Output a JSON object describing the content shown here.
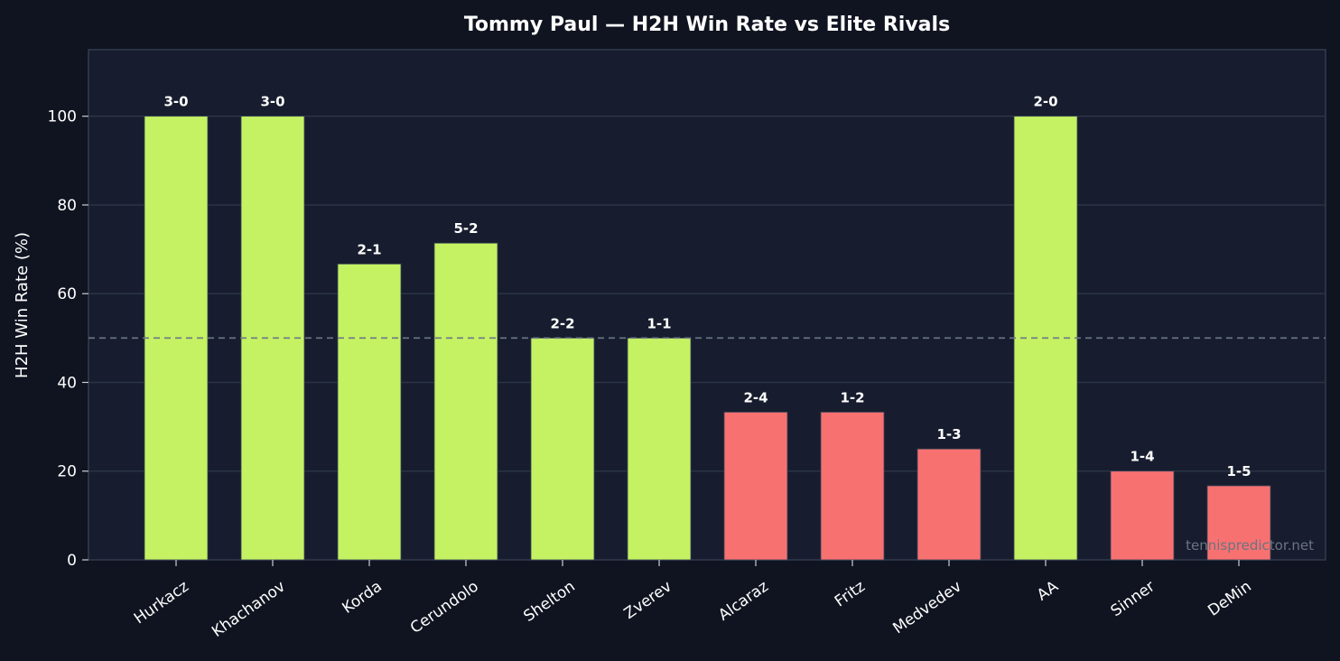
{
  "chart_data": {
    "type": "bar",
    "title": "Tommy Paul — H2H Win Rate vs Elite Rivals",
    "xlabel": "",
    "ylabel": "H2H Win Rate (%)",
    "ylim": [
      0,
      115
    ],
    "yticks": [
      0,
      20,
      40,
      60,
      80,
      100
    ],
    "reference_line": 50,
    "grid": true,
    "categories": [
      "Hurkacz",
      "Khachanov",
      "Korda",
      "Cerundolo",
      "Shelton",
      "Zverev",
      "Alcaraz",
      "Fritz",
      "Medvedev",
      "AA",
      "Sinner",
      "DeMin"
    ],
    "values": [
      100,
      100,
      66.7,
      71.4,
      50,
      50,
      33.3,
      33.3,
      25,
      100,
      20,
      16.7
    ],
    "data_labels": [
      "3-0",
      "3-0",
      "2-1",
      "5-2",
      "2-2",
      "1-1",
      "2-4",
      "1-2",
      "1-3",
      "2-0",
      "1-4",
      "1-5"
    ],
    "colors": {
      "win": "#c4f263",
      "loss": "#f87171",
      "background": "#0f1420",
      "plot_background": "#171d2e",
      "grid": "#2a3446",
      "reference_line": "#6b7786"
    }
  },
  "watermark": "tennispredictor.net"
}
